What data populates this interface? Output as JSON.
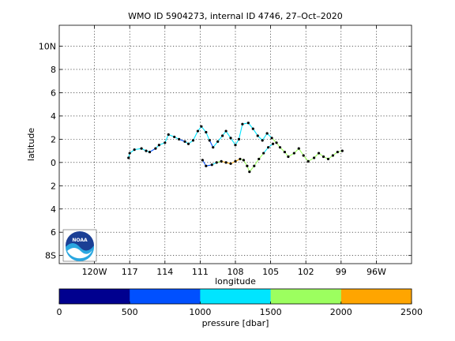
{
  "chart_data": {
    "type": "scatter",
    "title": "WMO ID 5904273, internal ID 4746, 27–Oct–2020",
    "xlabel": "longitude",
    "ylabel": "latitude",
    "xlim": [
      -123,
      -93
    ],
    "ylim": [
      -8.7,
      11.8
    ],
    "grid": true,
    "x_ticks": [
      -120,
      -117,
      -114,
      -111,
      -108,
      -105,
      -102,
      -99,
      -96
    ],
    "x_tick_labels": [
      "120W",
      "117",
      "114",
      "111",
      "108",
      "105",
      "102",
      "99",
      "96W"
    ],
    "y_ticks": [
      10,
      8,
      6,
      4,
      2,
      0,
      -2,
      -4,
      -6,
      -8
    ],
    "y_tick_labels": [
      "10N",
      "8",
      "6",
      "4",
      "2",
      "0",
      "2",
      "4",
      "6",
      "8S"
    ],
    "series": [
      {
        "values": [
          {
            "x": -117.1,
            "y": 0.4,
            "p": 800
          },
          {
            "x": -117.0,
            "y": 0.8,
            "p": 1200
          },
          {
            "x": -116.6,
            "y": 1.1,
            "p": 1250
          },
          {
            "x": -116.0,
            "y": 1.2,
            "p": 1300
          },
          {
            "x": -115.6,
            "y": 1.0,
            "p": 1100
          },
          {
            "x": -115.3,
            "y": 0.9,
            "p": 900
          },
          {
            "x": -114.8,
            "y": 1.2,
            "p": 1000
          },
          {
            "x": -114.5,
            "y": 1.5,
            "p": 1200
          },
          {
            "x": -114.0,
            "y": 1.7,
            "p": 1400
          },
          {
            "x": -113.7,
            "y": 2.4,
            "p": 1350
          },
          {
            "x": -113.2,
            "y": 2.2,
            "p": 1200
          },
          {
            "x": -112.8,
            "y": 2.0,
            "p": 1000
          },
          {
            "x": -112.3,
            "y": 1.8,
            "p": 900
          },
          {
            "x": -112.0,
            "y": 1.6,
            "p": 1100
          },
          {
            "x": -111.6,
            "y": 1.9,
            "p": 1300
          },
          {
            "x": -111.2,
            "y": 2.7,
            "p": 1400
          },
          {
            "x": -110.9,
            "y": 3.1,
            "p": 1300
          },
          {
            "x": -110.5,
            "y": 2.6,
            "p": 1200
          },
          {
            "x": -110.2,
            "y": 1.9,
            "p": 1000
          },
          {
            "x": -109.9,
            "y": 1.3,
            "p": 900
          },
          {
            "x": -109.5,
            "y": 1.8,
            "p": 1150
          },
          {
            "x": -109.1,
            "y": 2.3,
            "p": 1300
          },
          {
            "x": -108.8,
            "y": 2.7,
            "p": 1400
          },
          {
            "x": -108.4,
            "y": 2.1,
            "p": 1250
          },
          {
            "x": -108.0,
            "y": 1.5,
            "p": 1100
          },
          {
            "x": -107.7,
            "y": 2.0,
            "p": 1300
          },
          {
            "x": -107.4,
            "y": 3.3,
            "p": 1400
          },
          {
            "x": -106.9,
            "y": 3.4,
            "p": 1350
          },
          {
            "x": -106.5,
            "y": 2.9,
            "p": 1200
          },
          {
            "x": -106.1,
            "y": 2.3,
            "p": 1050
          },
          {
            "x": -105.7,
            "y": 1.9,
            "p": 1000
          },
          {
            "x": -105.3,
            "y": 2.5,
            "p": 1300
          },
          {
            "x": -104.9,
            "y": 2.1,
            "p": 1500
          },
          {
            "x": -104.5,
            "y": 1.7,
            "p": 1600
          },
          {
            "x": -104.2,
            "y": 1.3,
            "p": 1700
          },
          {
            "x": -103.8,
            "y": 0.9,
            "p": 1800
          },
          {
            "x": -103.5,
            "y": 0.5,
            "p": 1750
          },
          {
            "x": -103.0,
            "y": 0.8,
            "p": 1600
          },
          {
            "x": -102.6,
            "y": 1.2,
            "p": 1700
          },
          {
            "x": -102.2,
            "y": 0.6,
            "p": 1800
          },
          {
            "x": -101.8,
            "y": 0.1,
            "p": 1700
          },
          {
            "x": -101.3,
            "y": 0.4,
            "p": 1650
          },
          {
            "x": -100.9,
            "y": 0.8,
            "p": 1750
          },
          {
            "x": -100.5,
            "y": 0.5,
            "p": 1700
          },
          {
            "x": -100.1,
            "y": 0.3,
            "p": 1600
          },
          {
            "x": -99.7,
            "y": 0.6,
            "p": 1700
          },
          {
            "x": -99.3,
            "y": 0.9,
            "p": 1750
          },
          {
            "x": -98.9,
            "y": 1.0,
            "p": 1700
          }
        ]
      },
      {
        "values": [
          {
            "x": -110.8,
            "y": 0.2,
            "p": 800
          },
          {
            "x": -110.5,
            "y": -0.3,
            "p": 850
          },
          {
            "x": -110.0,
            "y": -0.2,
            "p": 900
          },
          {
            "x": -109.6,
            "y": 0.0,
            "p": 1300
          },
          {
            "x": -109.2,
            "y": 0.1,
            "p": 1800
          },
          {
            "x": -108.8,
            "y": 0.0,
            "p": 2200
          },
          {
            "x": -108.4,
            "y": -0.1,
            "p": 2300
          },
          {
            "x": -108.0,
            "y": 0.1,
            "p": 2250
          },
          {
            "x": -107.6,
            "y": 0.3,
            "p": 2000
          },
          {
            "x": -107.3,
            "y": 0.2,
            "p": 1800
          },
          {
            "x": -107.0,
            "y": -0.3,
            "p": 1650
          },
          {
            "x": -106.8,
            "y": -0.8,
            "p": 1600
          },
          {
            "x": -106.4,
            "y": -0.3,
            "p": 1700
          },
          {
            "x": -106.0,
            "y": 0.3,
            "p": 1650
          },
          {
            "x": -105.6,
            "y": 0.8,
            "p": 1700
          },
          {
            "x": -105.2,
            "y": 1.3,
            "p": 1200
          },
          {
            "x": -104.8,
            "y": 1.6,
            "p": 1000
          }
        ]
      }
    ],
    "colorbar": {
      "label": "pressure [dbar]",
      "range": [
        0,
        2500
      ],
      "ticks": [
        0,
        500,
        1000,
        1500,
        2000,
        2500
      ],
      "tick_labels": [
        "0",
        "500",
        "1000",
        "1500",
        "2000",
        "2500"
      ],
      "colors": [
        "#00008f",
        "#0050ff",
        "#00e5ff",
        "#9cff5f",
        "#ffa500"
      ]
    },
    "logo_text": "NOAA"
  }
}
